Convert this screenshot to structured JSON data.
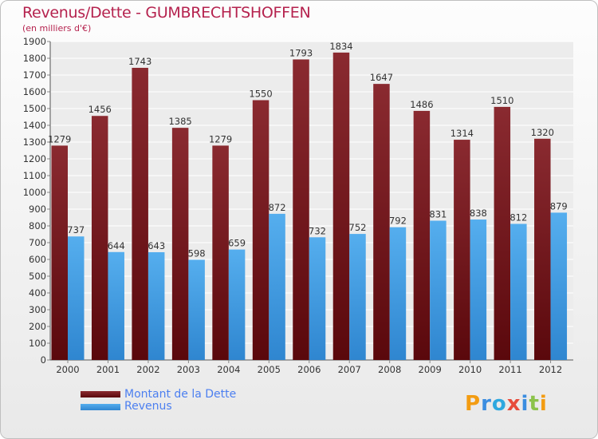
{
  "title": "Revenus/Dette - GUMBRECHTSHOFFEN",
  "subtitle": "(en milliers d'€)",
  "logo": {
    "text": "Proxiti",
    "colors": [
      "#f39c12",
      "#3b8de0",
      "#2ea8df",
      "#e74c3c",
      "#3b8de0",
      "#8bc34a",
      "#f39c12"
    ]
  },
  "colors": {
    "dette": "#6b0f14",
    "revenus": "#3f9ae2",
    "title": "#b5224e",
    "legend_text": "#4c7ff0"
  },
  "chart_data": {
    "type": "bar",
    "categories": [
      "2000",
      "2001",
      "2002",
      "2003",
      "2004",
      "2005",
      "2006",
      "2007",
      "2008",
      "2009",
      "2010",
      "2011",
      "2012"
    ],
    "series": [
      {
        "name": "Montant de la Dette",
        "values": [
          1279,
          1456,
          1743,
          1385,
          1279,
          1550,
          1793,
          1834,
          1647,
          1486,
          1314,
          1510,
          1320
        ]
      },
      {
        "name": "Revenus",
        "values": [
          737,
          644,
          643,
          598,
          659,
          872,
          732,
          752,
          792,
          831,
          838,
          812,
          879
        ]
      }
    ],
    "ylim": [
      0,
      1900
    ],
    "yticks": [
      0,
      100,
      200,
      300,
      400,
      500,
      600,
      700,
      800,
      900,
      1000,
      1100,
      1200,
      1300,
      1400,
      1500,
      1600,
      1700,
      1800,
      1900
    ],
    "grid": true,
    "legend": "bottom-left"
  }
}
